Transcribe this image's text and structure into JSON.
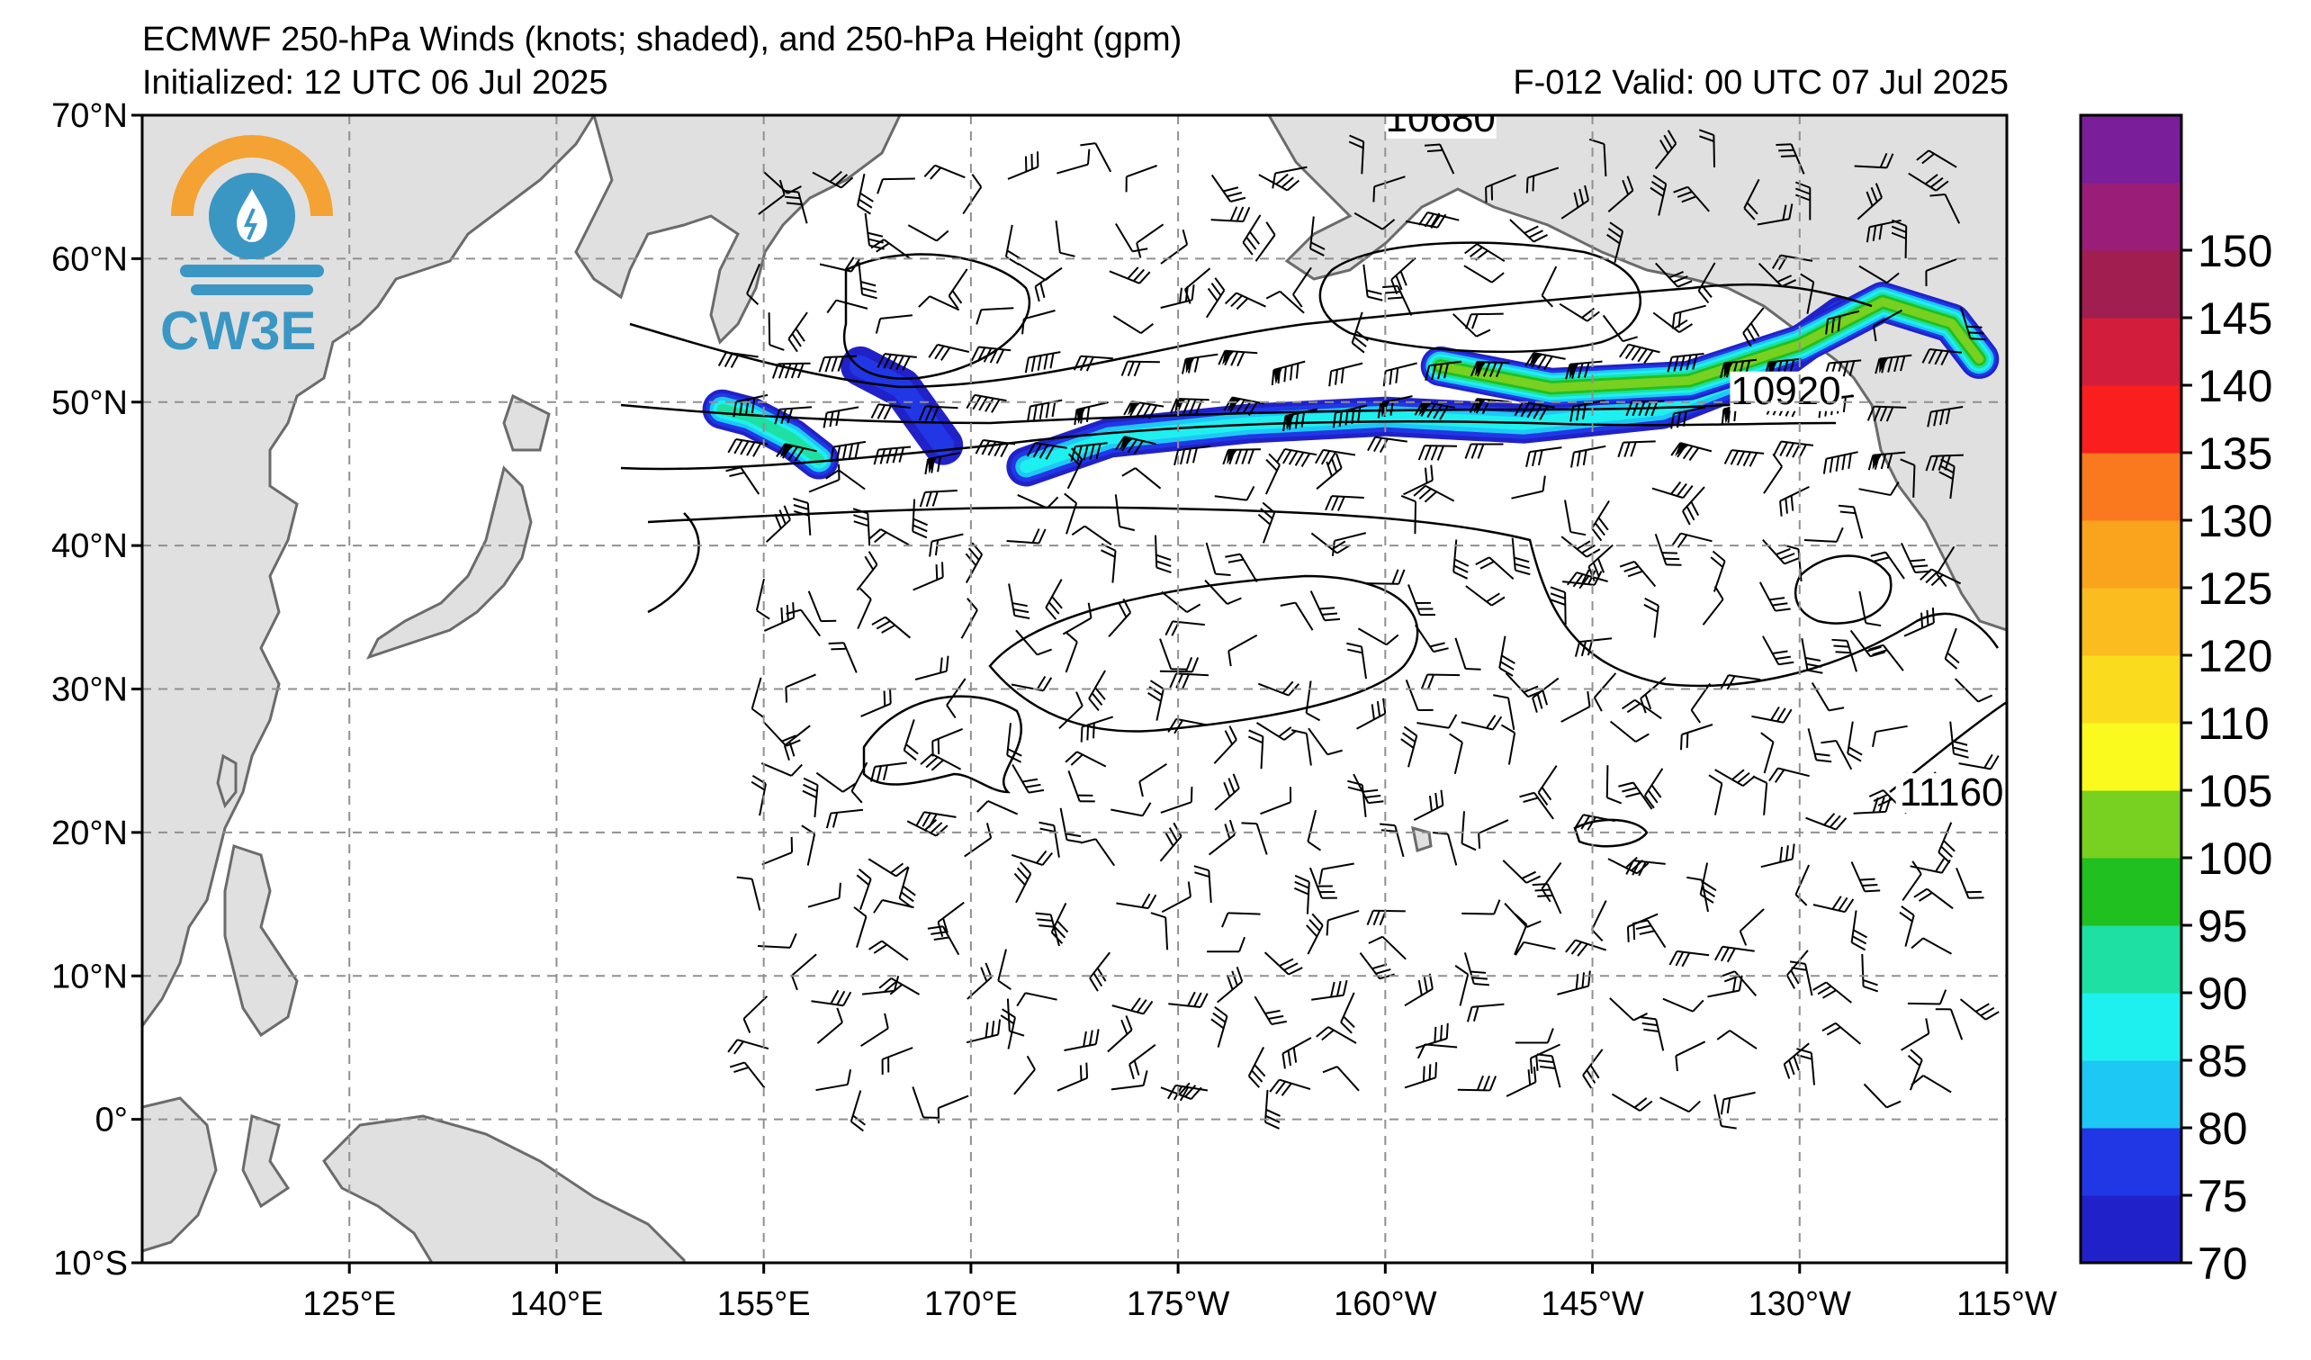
{
  "header": {
    "title": "ECMWF 250-hPa Winds (knots; shaded), and 250-hPa Height (gpm)",
    "initialized": "Initialized: 12 UTC 06 Jul 2025",
    "forecast": "F-012  Valid: 00 UTC 07 Jul 2025"
  },
  "logo": {
    "text": "CW3E"
  },
  "map": {
    "lon_range": [
      110,
      245
    ],
    "lat_range": [
      -10,
      70
    ],
    "lon_ticks": [
      {
        "value": 125,
        "label": "125°E"
      },
      {
        "value": 140,
        "label": "140°E"
      },
      {
        "value": 155,
        "label": "155°E"
      },
      {
        "value": 170,
        "label": "170°E"
      },
      {
        "value": 185,
        "label": "175°W"
      },
      {
        "value": 200,
        "label": "160°W"
      },
      {
        "value": 215,
        "label": "145°W"
      },
      {
        "value": 230,
        "label": "130°W"
      },
      {
        "value": 245,
        "label": "115°W"
      }
    ],
    "lat_ticks": [
      {
        "value": 70,
        "label": "70°N"
      },
      {
        "value": 60,
        "label": "60°N"
      },
      {
        "value": 50,
        "label": "50°N"
      },
      {
        "value": 40,
        "label": "40°N"
      },
      {
        "value": 30,
        "label": "30°N"
      },
      {
        "value": 20,
        "label": "20°N"
      },
      {
        "value": 10,
        "label": "10°N"
      },
      {
        "value": 0,
        "label": "0°"
      },
      {
        "value": -10,
        "label": "10°S"
      }
    ],
    "contour_labels": [
      {
        "text": "10680",
        "lon": 204,
        "lat": 69
      },
      {
        "text": "10920",
        "lon": 229,
        "lat": 50
      },
      {
        "text": "11160",
        "lon": 241,
        "lat": 22
      }
    ],
    "jets": [
      {
        "name": "west-jet",
        "points": [
          [
            152,
            49.5
          ],
          [
            154,
            49
          ],
          [
            157,
            47.5
          ],
          [
            159,
            46
          ]
        ],
        "max": 92
      },
      {
        "name": "small-jet",
        "points": [
          [
            162,
            52.5
          ],
          [
            165,
            51
          ],
          [
            168,
            47
          ]
        ],
        "max": 78
      },
      {
        "name": "main-jet",
        "points": [
          [
            174,
            45.5
          ],
          [
            180,
            47.5
          ],
          [
            190,
            48.5
          ],
          [
            200,
            49
          ],
          [
            210,
            48.5
          ],
          [
            220,
            49.5
          ],
          [
            228,
            52.5
          ],
          [
            233,
            56
          ]
        ],
        "max": 88
      },
      {
        "name": "north-jet",
        "points": [
          [
            204,
            52.5
          ],
          [
            212,
            51
          ],
          [
            222,
            51.5
          ],
          [
            230,
            54
          ],
          [
            236,
            57
          ],
          [
            241,
            55.5
          ],
          [
            243,
            53
          ]
        ],
        "max": 100
      }
    ]
  },
  "colorbar": {
    "levels": [
      70,
      75,
      80,
      85,
      90,
      95,
      100,
      105,
      110,
      115,
      120,
      125,
      130,
      135,
      140,
      145,
      150,
      155
    ],
    "colors": [
      "#2121c9",
      "#2137e6",
      "#1ec8f5",
      "#1ef0f0",
      "#1ee0a3",
      "#20c020",
      "#78d020",
      "#fafa1e",
      "#fadb1e",
      "#fabc1e",
      "#faa41e",
      "#fa781e",
      "#fa1e1e",
      "#d21e3c",
      "#a01e50",
      "#9a1e78",
      "#7a1e9a"
    ],
    "labels": [
      "70",
      "75",
      "80",
      "85",
      "90",
      "95",
      "100",
      "105",
      "110",
      "120",
      "125",
      "130",
      "135",
      "140",
      "145",
      "150"
    ]
  },
  "style": {
    "land": "#e0e0e0",
    "coast": "#6b6b6b",
    "grid": "#909090",
    "logo_orange": "#f4a233",
    "logo_blue": "#3a97c4"
  }
}
